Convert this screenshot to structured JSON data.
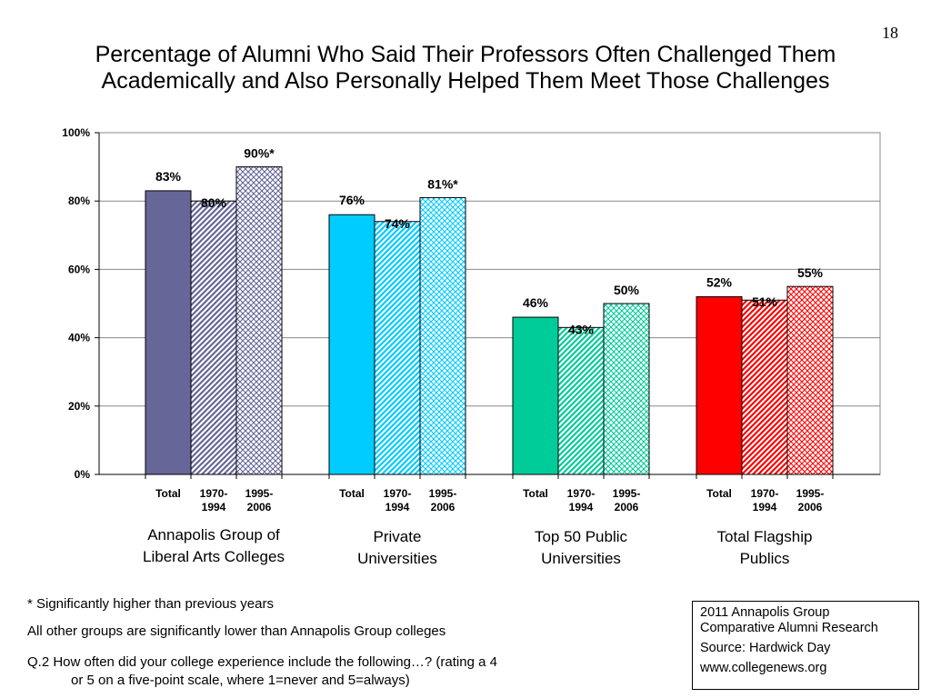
{
  "page_number": "18",
  "title_lines": [
    "Percentage of Alumni Who Said Their Professors Often Challenged Them",
    "Academically and Also Personally Helped Them Meet Those Challenges"
  ],
  "chart_data": {
    "type": "bar",
    "ylim": [
      0,
      100
    ],
    "ytick_labels": [
      "0%",
      "20%",
      "40%",
      "60%",
      "80%",
      "100%"
    ],
    "grid": true,
    "bar_labels": [
      "Total",
      "1970-\n1994",
      "1995-\n2006"
    ],
    "groups": [
      {
        "name": "Annapolis Group of\nLiberal Arts Colleges",
        "color": "#666699",
        "values": [
          83,
          80,
          90
        ],
        "value_labels": [
          "83%",
          "80%",
          "90%*"
        ]
      },
      {
        "name": "Private\nUniversities",
        "color": "#00ccff",
        "values": [
          76,
          74,
          81
        ],
        "value_labels": [
          "76%",
          "74%",
          "81%*"
        ]
      },
      {
        "name": "Top 50 Public\nUniversities",
        "color": "#00cc99",
        "values": [
          46,
          43,
          50
        ],
        "value_labels": [
          "46%",
          "43%",
          "50%"
        ]
      },
      {
        "name": "Total Flagship\nPublics",
        "color": "#ff0000",
        "values": [
          52,
          51,
          55
        ],
        "value_labels": [
          "52%",
          "51%",
          "55%"
        ]
      }
    ]
  },
  "footnotes": [
    "* Significantly higher than previous years",
    "All other groups are significantly lower than Annapolis Group colleges",
    "Q.2 How often did your college experience include the following…? (rating a 4",
    "or 5 on a five-point scale, where 1=never and 5=always)"
  ],
  "source_box": {
    "line1": "2011 Annapolis Group",
    "line2": "Comparative Alumni Research",
    "line3": "Source: Hardwick Day",
    "line4": "www.collegenews.org"
  }
}
